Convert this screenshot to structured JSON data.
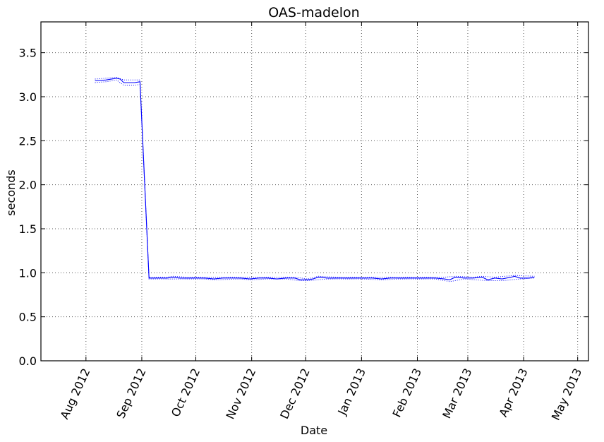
{
  "chart_data": {
    "type": "line",
    "title": "OAS-madelon",
    "xlabel": "Date",
    "ylabel": "seconds",
    "x_axis": {
      "type": "date",
      "range": [
        "2012-07-07",
        "2013-05-07"
      ],
      "tick_dates": [
        "2012-08-01",
        "2012-09-01",
        "2012-10-01",
        "2012-11-01",
        "2012-12-01",
        "2013-01-01",
        "2013-02-01",
        "2013-03-01",
        "2013-04-01",
        "2013-05-01"
      ],
      "tick_labels": [
        "Aug 2012",
        "Sep 2012",
        "Oct 2012",
        "Nov 2012",
        "Dec 2012",
        "Jan 2013",
        "Feb 2013",
        "Mar 2013",
        "Apr 2013",
        "May 2013"
      ]
    },
    "y_axis": {
      "range": [
        0,
        3.85
      ],
      "ticks": [
        0.0,
        0.5,
        1.0,
        1.5,
        2.0,
        2.5,
        3.0,
        3.5
      ],
      "tick_labels": [
        "0.0",
        "0.5",
        "1.0",
        "1.5",
        "2.0",
        "2.5",
        "3.0",
        "3.5"
      ]
    },
    "grid": true,
    "colors": {
      "series": "#0000ff",
      "grid": "#555555",
      "axes": "#000000"
    },
    "series": [
      {
        "line_style": "solid",
        "points": [
          [
            "2012-08-06",
            3.18
          ],
          [
            "2012-08-12",
            3.19
          ],
          [
            "2012-08-18",
            3.21
          ],
          [
            "2012-08-20",
            3.2
          ],
          [
            "2012-08-22",
            3.16
          ],
          [
            "2012-08-28",
            3.16
          ],
          [
            "2012-08-31",
            3.17
          ],
          [
            "2012-09-05",
            0.94
          ],
          [
            "2012-09-10",
            0.94
          ],
          [
            "2012-09-15",
            0.94
          ],
          [
            "2012-09-18",
            0.95
          ],
          [
            "2012-09-22",
            0.94
          ],
          [
            "2012-09-26",
            0.94
          ],
          [
            "2012-10-01",
            0.94
          ],
          [
            "2012-10-06",
            0.94
          ],
          [
            "2012-10-11",
            0.93
          ],
          [
            "2012-10-16",
            0.94
          ],
          [
            "2012-10-21",
            0.94
          ],
          [
            "2012-10-26",
            0.94
          ],
          [
            "2012-10-31",
            0.93
          ],
          [
            "2012-11-05",
            0.94
          ],
          [
            "2012-11-10",
            0.94
          ],
          [
            "2012-11-15",
            0.93
          ],
          [
            "2012-11-20",
            0.94
          ],
          [
            "2012-11-25",
            0.94
          ],
          [
            "2012-11-28",
            0.92
          ],
          [
            "2012-12-02",
            0.92
          ],
          [
            "2012-12-05",
            0.93
          ],
          [
            "2012-12-08",
            0.95
          ],
          [
            "2012-12-13",
            0.94
          ],
          [
            "2012-12-18",
            0.94
          ],
          [
            "2012-12-23",
            0.94
          ],
          [
            "2012-12-28",
            0.94
          ],
          [
            "2013-01-02",
            0.94
          ],
          [
            "2013-01-07",
            0.94
          ],
          [
            "2013-01-12",
            0.93
          ],
          [
            "2013-01-17",
            0.94
          ],
          [
            "2013-01-22",
            0.94
          ],
          [
            "2013-01-27",
            0.94
          ],
          [
            "2013-02-01",
            0.94
          ],
          [
            "2013-02-06",
            0.94
          ],
          [
            "2013-02-11",
            0.94
          ],
          [
            "2013-02-16",
            0.93
          ],
          [
            "2013-02-19",
            0.92
          ],
          [
            "2013-02-22",
            0.95
          ],
          [
            "2013-02-27",
            0.94
          ],
          [
            "2013-03-04",
            0.94
          ],
          [
            "2013-03-09",
            0.95
          ],
          [
            "2013-03-12",
            0.92
          ],
          [
            "2013-03-16",
            0.94
          ],
          [
            "2013-03-20",
            0.93
          ],
          [
            "2013-03-25",
            0.95
          ],
          [
            "2013-03-27",
            0.96
          ],
          [
            "2013-03-30",
            0.94
          ],
          [
            "2013-04-04",
            0.94
          ],
          [
            "2013-04-07",
            0.95
          ]
        ]
      },
      {
        "line_style": "dotted",
        "points": [
          [
            "2012-08-06",
            3.2
          ],
          [
            "2012-08-12",
            3.21
          ],
          [
            "2012-08-18",
            3.22
          ],
          [
            "2012-08-22",
            3.19
          ],
          [
            "2012-08-28",
            3.19
          ],
          [
            "2012-08-31",
            3.19
          ],
          [
            "2012-09-05",
            0.95
          ],
          [
            "2012-09-15",
            0.95
          ],
          [
            "2012-09-18",
            0.96
          ],
          [
            "2012-09-26",
            0.95
          ],
          [
            "2012-10-06",
            0.95
          ],
          [
            "2012-10-16",
            0.95
          ],
          [
            "2012-10-26",
            0.95
          ],
          [
            "2012-11-05",
            0.95
          ],
          [
            "2012-11-15",
            0.95
          ],
          [
            "2012-11-25",
            0.95
          ],
          [
            "2012-12-02",
            0.93
          ],
          [
            "2012-12-08",
            0.96
          ],
          [
            "2012-12-18",
            0.95
          ],
          [
            "2012-12-28",
            0.95
          ],
          [
            "2013-01-07",
            0.95
          ],
          [
            "2013-01-17",
            0.95
          ],
          [
            "2013-01-27",
            0.95
          ],
          [
            "2013-02-06",
            0.95
          ],
          [
            "2013-02-16",
            0.95
          ],
          [
            "2013-02-22",
            0.96
          ],
          [
            "2013-03-04",
            0.95
          ],
          [
            "2013-03-09",
            0.96
          ],
          [
            "2013-03-16",
            0.95
          ],
          [
            "2013-03-27",
            0.97
          ],
          [
            "2013-04-07",
            0.96
          ]
        ]
      },
      {
        "line_style": "dotted",
        "points": [
          [
            "2012-08-06",
            3.16
          ],
          [
            "2012-08-12",
            3.17
          ],
          [
            "2012-08-18",
            3.19
          ],
          [
            "2012-08-22",
            3.13
          ],
          [
            "2012-08-28",
            3.13
          ],
          [
            "2012-08-31",
            3.14
          ],
          [
            "2012-09-05",
            0.93
          ],
          [
            "2012-09-15",
            0.93
          ],
          [
            "2012-09-26",
            0.93
          ],
          [
            "2012-10-06",
            0.93
          ],
          [
            "2012-10-11",
            0.92
          ],
          [
            "2012-10-26",
            0.93
          ],
          [
            "2012-10-31",
            0.92
          ],
          [
            "2012-11-10",
            0.93
          ],
          [
            "2012-11-20",
            0.93
          ],
          [
            "2012-11-28",
            0.91
          ],
          [
            "2012-12-02",
            0.91
          ],
          [
            "2012-12-13",
            0.93
          ],
          [
            "2012-12-23",
            0.93
          ],
          [
            "2013-01-02",
            0.93
          ],
          [
            "2013-01-12",
            0.92
          ],
          [
            "2013-01-22",
            0.93
          ],
          [
            "2013-02-01",
            0.93
          ],
          [
            "2013-02-11",
            0.93
          ],
          [
            "2013-02-19",
            0.9
          ],
          [
            "2013-02-27",
            0.93
          ],
          [
            "2013-03-12",
            0.91
          ],
          [
            "2013-03-20",
            0.91
          ],
          [
            "2013-03-30",
            0.93
          ],
          [
            "2013-04-07",
            0.94
          ]
        ]
      }
    ]
  }
}
